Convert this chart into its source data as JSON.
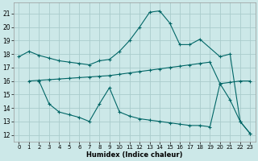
{
  "xlabel": "Humidex (Indice chaleur)",
  "background_color": "#cce8e8",
  "grid_color": "#aacccc",
  "line_color": "#006666",
  "xlim": [
    -0.5,
    23.5
  ],
  "ylim": [
    11.5,
    21.8
  ],
  "yticks": [
    12,
    13,
    14,
    15,
    16,
    17,
    18,
    19,
    20,
    21
  ],
  "xticks": [
    0,
    1,
    2,
    3,
    4,
    5,
    6,
    7,
    8,
    9,
    10,
    11,
    12,
    13,
    14,
    15,
    16,
    17,
    18,
    19,
    20,
    21,
    22,
    23
  ],
  "line1_x": [
    0,
    1,
    2,
    3,
    4,
    5,
    6,
    7,
    8,
    9,
    10,
    11,
    12,
    13,
    14,
    15,
    16,
    17,
    18,
    20,
    21,
    22,
    23
  ],
  "line1_y": [
    17.8,
    18.2,
    17.9,
    17.7,
    17.5,
    17.4,
    17.3,
    17.2,
    17.5,
    17.6,
    18.2,
    19.0,
    20.0,
    21.1,
    21.2,
    20.3,
    18.7,
    18.7,
    19.1,
    17.8,
    18.0,
    13.0,
    12.1
  ],
  "line2_x": [
    1,
    2,
    3,
    4,
    5,
    6,
    7,
    8,
    9,
    10,
    11,
    12,
    13,
    14,
    15,
    16,
    17,
    18,
    19,
    20,
    21,
    22,
    23
  ],
  "line2_y": [
    16.0,
    16.05,
    16.1,
    16.15,
    16.2,
    16.25,
    16.3,
    16.35,
    16.4,
    16.5,
    16.6,
    16.7,
    16.8,
    16.9,
    17.0,
    17.1,
    17.2,
    17.3,
    17.4,
    15.8,
    15.9,
    16.0,
    16.0
  ],
  "line3_x": [
    2,
    3,
    4,
    5,
    6,
    7,
    8,
    9,
    10,
    11,
    12,
    13,
    14,
    15,
    16,
    17,
    18,
    19,
    20,
    21,
    22,
    23
  ],
  "line3_y": [
    16.0,
    14.3,
    13.7,
    13.5,
    13.3,
    13.0,
    14.3,
    15.5,
    13.7,
    13.4,
    13.2,
    13.1,
    13.0,
    12.9,
    12.8,
    12.7,
    12.7,
    12.6,
    15.8,
    14.6,
    13.0,
    12.1
  ]
}
